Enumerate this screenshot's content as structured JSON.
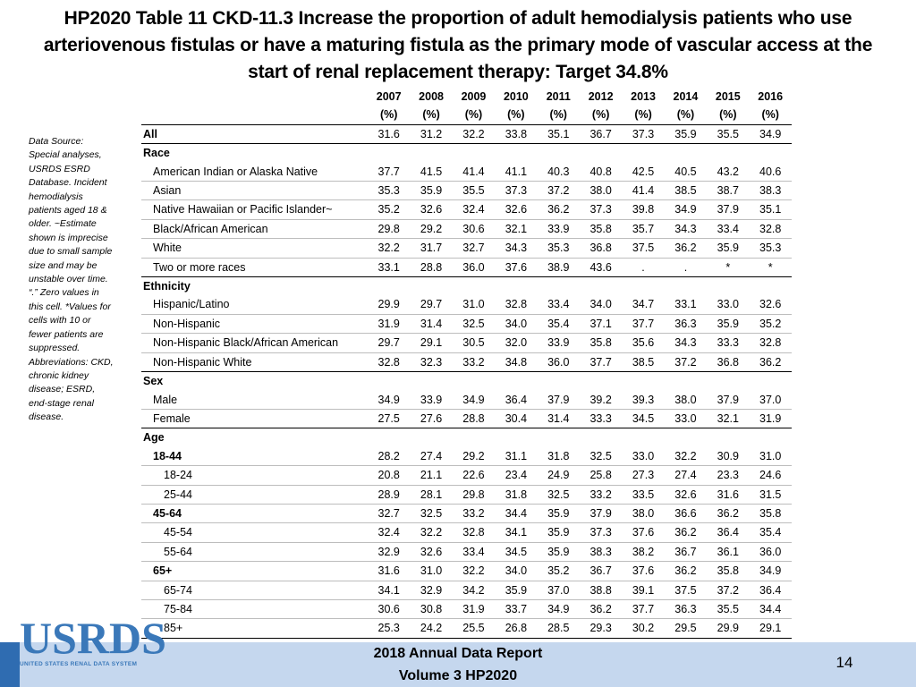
{
  "title": "HP2020 Table 11 CKD-11.3 Increase the proportion of adult hemodialysis patients who use arteriovenous fistulas or have a maturing fistula as the primary mode of vascular access at the start of renal replacement therapy: Target 34.8%",
  "source_note": "Data Source: Special analyses, USRDS ESRD Database. Incident hemodialysis patients aged 18 & older. ~Estimate shown is imprecise due to small sample size and may be unstable over time. “.” Zero values in this cell. *Values for cells with 10 or fewer patients are suppressed. Abbreviations: CKD, chronic kidney disease; ESRD, end-stage renal disease.",
  "table": {
    "years": [
      "2007",
      "2008",
      "2009",
      "2010",
      "2011",
      "2012",
      "2013",
      "2014",
      "2015",
      "2016"
    ],
    "unit": "(%)",
    "rows": [
      {
        "label": "All",
        "level": 0,
        "values": [
          "31.6",
          "31.2",
          "32.2",
          "33.8",
          "35.1",
          "36.7",
          "37.3",
          "35.9",
          "35.5",
          "34.9"
        ],
        "end": true
      },
      {
        "label": "Race",
        "level": 0,
        "values": [],
        "section": true
      },
      {
        "label": "American Indian or Alaska Native",
        "level": 1,
        "values": [
          "37.7",
          "41.5",
          "41.4",
          "41.1",
          "40.3",
          "40.8",
          "42.5",
          "40.5",
          "43.2",
          "40.6"
        ]
      },
      {
        "label": "Asian",
        "level": 1,
        "values": [
          "35.3",
          "35.9",
          "35.5",
          "37.3",
          "37.2",
          "38.0",
          "41.4",
          "38.5",
          "38.7",
          "38.3"
        ]
      },
      {
        "label": "Native Hawaiian or Pacific Islander~",
        "level": 1,
        "values": [
          "35.2",
          "32.6",
          "32.4",
          "32.6",
          "36.2",
          "37.3",
          "39.8",
          "34.9",
          "37.9",
          "35.1"
        ]
      },
      {
        "label": "Black/African American",
        "level": 1,
        "values": [
          "29.8",
          "29.2",
          "30.6",
          "32.1",
          "33.9",
          "35.8",
          "35.7",
          "34.3",
          "33.4",
          "32.8"
        ]
      },
      {
        "label": "White",
        "level": 1,
        "values": [
          "32.2",
          "31.7",
          "32.7",
          "34.3",
          "35.3",
          "36.8",
          "37.5",
          "36.2",
          "35.9",
          "35.3"
        ]
      },
      {
        "label": "Two or more races",
        "level": 1,
        "values": [
          "33.1",
          "28.8",
          "36.0",
          "37.6",
          "38.9",
          "43.6",
          ".",
          ".",
          "*",
          "*"
        ],
        "end": true
      },
      {
        "label": "Ethnicity",
        "level": 0,
        "values": [],
        "section": true
      },
      {
        "label": "Hispanic/Latino",
        "level": 1,
        "values": [
          "29.9",
          "29.7",
          "31.0",
          "32.8",
          "33.4",
          "34.0",
          "34.7",
          "33.1",
          "33.0",
          "32.6"
        ]
      },
      {
        "label": "Non-Hispanic",
        "level": 1,
        "values": [
          "31.9",
          "31.4",
          "32.5",
          "34.0",
          "35.4",
          "37.1",
          "37.7",
          "36.3",
          "35.9",
          "35.2"
        ]
      },
      {
        "label": "Non-Hispanic Black/African American",
        "level": 1,
        "values": [
          "29.7",
          "29.1",
          "30.5",
          "32.0",
          "33.9",
          "35.8",
          "35.6",
          "34.3",
          "33.3",
          "32.8"
        ]
      },
      {
        "label": "Non-Hispanic White",
        "level": 1,
        "values": [
          "32.8",
          "32.3",
          "33.2",
          "34.8",
          "36.0",
          "37.7",
          "38.5",
          "37.2",
          "36.8",
          "36.2"
        ],
        "end": true
      },
      {
        "label": "Sex",
        "level": 0,
        "values": [],
        "section": true
      },
      {
        "label": "Male",
        "level": 1,
        "values": [
          "34.9",
          "33.9",
          "34.9",
          "36.4",
          "37.9",
          "39.2",
          "39.3",
          "38.0",
          "37.9",
          "37.0"
        ]
      },
      {
        "label": "Female",
        "level": 1,
        "values": [
          "27.5",
          "27.6",
          "28.8",
          "30.4",
          "31.4",
          "33.3",
          "34.5",
          "33.0",
          "32.1",
          "31.9"
        ],
        "end": true
      },
      {
        "label": "Age",
        "level": 0,
        "values": [],
        "section": true
      },
      {
        "label": "18-44",
        "level": 3,
        "values": [
          "28.2",
          "27.4",
          "29.2",
          "31.1",
          "31.8",
          "32.5",
          "33.0",
          "32.2",
          "30.9",
          "31.0"
        ]
      },
      {
        "label": "18-24",
        "level": 2,
        "values": [
          "20.8",
          "21.1",
          "22.6",
          "23.4",
          "24.9",
          "25.8",
          "27.3",
          "27.4",
          "23.3",
          "24.6"
        ]
      },
      {
        "label": "25-44",
        "level": 2,
        "values": [
          "28.9",
          "28.1",
          "29.8",
          "31.8",
          "32.5",
          "33.2",
          "33.5",
          "32.6",
          "31.6",
          "31.5"
        ]
      },
      {
        "label": "45-64",
        "level": 3,
        "values": [
          "32.7",
          "32.5",
          "33.2",
          "34.4",
          "35.9",
          "37.9",
          "38.0",
          "36.6",
          "36.2",
          "35.8"
        ]
      },
      {
        "label": "45-54",
        "level": 2,
        "values": [
          "32.4",
          "32.2",
          "32.8",
          "34.1",
          "35.9",
          "37.3",
          "37.6",
          "36.2",
          "36.4",
          "35.4"
        ]
      },
      {
        "label": "55-64",
        "level": 2,
        "values": [
          "32.9",
          "32.6",
          "33.4",
          "34.5",
          "35.9",
          "38.3",
          "38.2",
          "36.7",
          "36.1",
          "36.0"
        ]
      },
      {
        "label": "65+",
        "level": 3,
        "values": [
          "31.6",
          "31.0",
          "32.2",
          "34.0",
          "35.2",
          "36.7",
          "37.6",
          "36.2",
          "35.8",
          "34.9"
        ]
      },
      {
        "label": "65-74",
        "level": 2,
        "values": [
          "34.1",
          "32.9",
          "34.2",
          "35.9",
          "37.0",
          "38.8",
          "39.1",
          "37.5",
          "37.2",
          "36.4"
        ]
      },
      {
        "label": "75-84",
        "level": 2,
        "values": [
          "30.6",
          "30.8",
          "31.9",
          "33.7",
          "34.9",
          "36.2",
          "37.7",
          "36.3",
          "35.5",
          "34.4"
        ]
      },
      {
        "label": "85+",
        "level": 2,
        "values": [
          "25.3",
          "24.2",
          "25.5",
          "26.8",
          "28.5",
          "29.3",
          "30.2",
          "29.5",
          "29.9",
          "29.1"
        ],
        "end": true
      }
    ]
  },
  "logo": {
    "text": "USRDS",
    "subtitle": "UNITED STATES RENAL DATA SYSTEM"
  },
  "footer": {
    "line1": "2018 Annual Data Report",
    "line2": "Volume 3 HP2020",
    "page": "14"
  },
  "colors": {
    "footer_bar": "#c5d7ee",
    "footer_accent": "#2f6cb1",
    "logo": "#3a78b9"
  }
}
